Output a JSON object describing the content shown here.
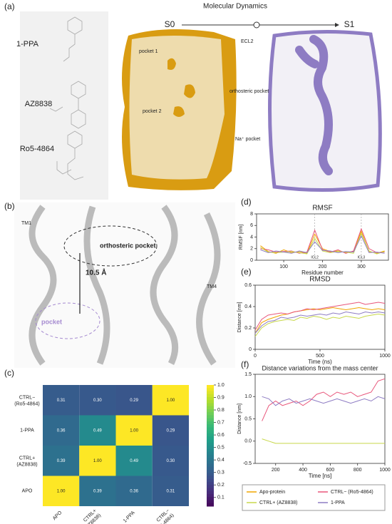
{
  "figure": {
    "panel_a": {
      "label": "(a)",
      "title": "Molecular Dynamics",
      "state_start": "S0",
      "state_end": "S1",
      "ligands": [
        "1-PPA",
        "AZ8838",
        "Ro5-4864"
      ],
      "annotations": [
        "pocket 1",
        "ECL2",
        "orthosteric pocket",
        "pocket 2",
        "Na⁺ pocket"
      ]
    },
    "panel_b": {
      "label": "(b)",
      "annotations": [
        "TM1",
        "orthosteric pocket",
        "10.5 Å",
        "TM4",
        "pocket"
      ]
    },
    "panel_c": {
      "label": "(c)"
    },
    "panel_d": {
      "label": "(d)"
    },
    "panel_e": {
      "label": "(e)"
    },
    "panel_f": {
      "label": "(f)"
    }
  },
  "chart_data": [
    {
      "type": "heatmap",
      "row_labels": [
        "CTRL− (Ro5-4864)",
        "1-PPA",
        "CTRL+ (AZ8838)",
        "APO"
      ],
      "col_labels": [
        "APO",
        "CTRL+ (AZ8838)",
        "1-PPA",
        "CTRL− (Ro5-4864)"
      ],
      "values": [
        [
          0.31,
          0.3,
          0.29,
          1
        ],
        [
          0.36,
          0.49,
          1,
          0.29
        ],
        [
          0.39,
          1,
          0.49,
          0.3
        ],
        [
          1,
          0.39,
          0.36,
          0.31
        ]
      ],
      "value_labels": [
        [
          "0.31",
          "0.30",
          "0.29",
          "1.00"
        ],
        [
          "0.36",
          "0.49",
          "1.00",
          "0.29"
        ],
        [
          "0.39",
          "1.00",
          "0.49",
          "0.30"
        ],
        [
          "1.00",
          "0.39",
          "0.36",
          "0.31"
        ]
      ],
      "colormap": "viridis",
      "zlim": [
        0.03,
        1
      ],
      "zticks": [
        0.1,
        0.2,
        0.3,
        0.4,
        0.5,
        0.6,
        0.7,
        0.8,
        0.9,
        {
          "value": 1,
          "label": "1.0"
        }
      ]
    },
    {
      "type": "line",
      "title": "RMSF",
      "x_label": "Residue number",
      "y_label": "RMSF [nm]",
      "x": [
        40,
        60,
        80,
        100,
        120,
        140,
        160,
        180,
        200,
        220,
        240,
        260,
        280,
        300,
        320,
        340,
        360
      ],
      "series": [
        {
          "name": "Apo-protein",
          "color": "#f0a500",
          "values": [
            2.5,
            1.5,
            1.2,
            1.8,
            1.3,
            1.5,
            1.2,
            4.5,
            2.0,
            1.5,
            1.6,
            1.3,
            1.5,
            5.0,
            1.5,
            1.2,
            1.6
          ]
        },
        {
          "name": "CTRL− (Ro5-4864)",
          "color": "#e8557a",
          "values": [
            2,
            1.8,
            1.4,
            1.5,
            1.6,
            1.2,
            1.4,
            5.2,
            1.8,
            1.4,
            1.8,
            1.2,
            1.6,
            5.4,
            2.0,
            1.3,
            1.4
          ]
        },
        {
          "name": "CTRL+ (AZ8838)",
          "color": "#c8d84a",
          "values": [
            2.2,
            1.4,
            1.3,
            1.4,
            1.5,
            1.3,
            1.1,
            3.8,
            1.6,
            1.3,
            1.5,
            1.4,
            1.2,
            4.6,
            1.6,
            1.1,
            1.5
          ]
        },
        {
          "name": "1-PPA",
          "color": "#8e7cc3",
          "values": [
            1.8,
            1.3,
            1.6,
            1.4,
            1.2,
            1.6,
            1.3,
            3.2,
            1.7,
            1.6,
            1.3,
            1.5,
            1.4,
            4.2,
            1.3,
            1.4,
            1.2
          ]
        }
      ],
      "xlim": [
        30,
        370
      ],
      "ylim": [
        0,
        8
      ],
      "xticks": [
        100,
        200,
        300
      ],
      "yticks": [
        0,
        2,
        4,
        6,
        8
      ],
      "annotations": [
        {
          "text": "ICL2",
          "x": 180
        },
        {
          "text": "ICL3",
          "x": 300
        }
      ]
    },
    {
      "type": "line",
      "title": "RMSD",
      "x_label": "Time (ns)",
      "y_label": "Distance [nm]",
      "x": [
        0,
        50,
        100,
        150,
        200,
        250,
        300,
        350,
        400,
        450,
        500,
        550,
        600,
        650,
        700,
        750,
        800,
        850,
        900,
        950,
        1000
      ],
      "series": [
        {
          "name": "Apo-protein",
          "color": "#f0a500",
          "values": [
            0.15,
            0.25,
            0.28,
            0.3,
            0.32,
            0.33,
            0.35,
            0.36,
            0.37,
            0.38,
            0.37,
            0.38,
            0.39,
            0.38,
            0.37,
            0.38,
            0.39,
            0.38,
            0.37,
            0.38,
            0.37
          ]
        },
        {
          "name": "CTRL− (Ro5-4864)",
          "color": "#e8557a",
          "values": [
            0.18,
            0.28,
            0.32,
            0.33,
            0.34,
            0.33,
            0.35,
            0.36,
            0.38,
            0.37,
            0.38,
            0.39,
            0.4,
            0.41,
            0.42,
            0.43,
            0.44,
            0.42,
            0.43,
            0.44,
            0.43
          ]
        },
        {
          "name": "CTRL+ (AZ8838)",
          "color": "#c8d84a",
          "values": [
            0.12,
            0.2,
            0.24,
            0.26,
            0.27,
            0.28,
            0.27,
            0.3,
            0.29,
            0.31,
            0.3,
            0.28,
            0.3,
            0.29,
            0.31,
            0.3,
            0.29,
            0.31,
            0.32,
            0.33,
            0.32
          ]
        },
        {
          "name": "1-PPA",
          "color": "#8e7cc3",
          "values": [
            0.15,
            0.22,
            0.26,
            0.27,
            0.3,
            0.29,
            0.3,
            0.32,
            0.31,
            0.32,
            0.33,
            0.32,
            0.34,
            0.33,
            0.35,
            0.34,
            0.33,
            0.35,
            0.34,
            0.35,
            0.34
          ]
        }
      ],
      "xlim": [
        0,
        1000
      ],
      "ylim": [
        0,
        0.6
      ],
      "xticks": [
        0,
        500,
        1000
      ],
      "yticks": [
        0,
        0.2,
        0.4,
        0.6
      ]
    },
    {
      "type": "line",
      "title": "Distance variations from the mass center",
      "x_label": "Time [ns]",
      "y_label": "Distance [nm]",
      "x": [
        100,
        150,
        200,
        250,
        300,
        350,
        400,
        450,
        500,
        550,
        600,
        650,
        700,
        750,
        800,
        850,
        900,
        950,
        1000
      ],
      "series": [
        {
          "name": "CTRL− (Ro5-4864)",
          "color": "#e8557a",
          "values": [
            0.45,
            0.8,
            0.9,
            0.8,
            0.85,
            0.9,
            0.8,
            0.9,
            1.05,
            1.1,
            1.0,
            1.1,
            1.05,
            1.1,
            1.0,
            1.05,
            1.1,
            1.35,
            1.4
          ]
        },
        {
          "name": "1-PPA",
          "color": "#8e7cc3",
          "values": [
            1.0,
            0.95,
            0.8,
            0.9,
            0.95,
            0.85,
            0.9,
            0.95,
            0.9,
            0.85,
            0.9,
            0.95,
            0.9,
            0.85,
            0.9,
            0.95,
            0.9,
            1.0,
            0.95
          ]
        },
        {
          "name": "CTRL+ (AZ8838)",
          "color": "#c8d84a",
          "values": [
            0.05,
            0,
            -0.05,
            -0.05,
            -0.05,
            -0.05,
            -0.05,
            -0.05,
            -0.05,
            -0.05,
            -0.05,
            -0.05,
            -0.05,
            -0.05,
            -0.05,
            -0.05,
            -0.05,
            -0.05,
            -0.05
          ]
        }
      ],
      "xlim": [
        50,
        1000
      ],
      "ylim": [
        -0.5,
        1.5
      ],
      "xticks": [
        200,
        400,
        600,
        800,
        1000
      ],
      "yticks": [
        -0.5,
        {
          "value": 0,
          "label": "0.0"
        },
        0.5,
        {
          "value": 1,
          "label": "1.0"
        },
        1.5
      ]
    }
  ]
}
